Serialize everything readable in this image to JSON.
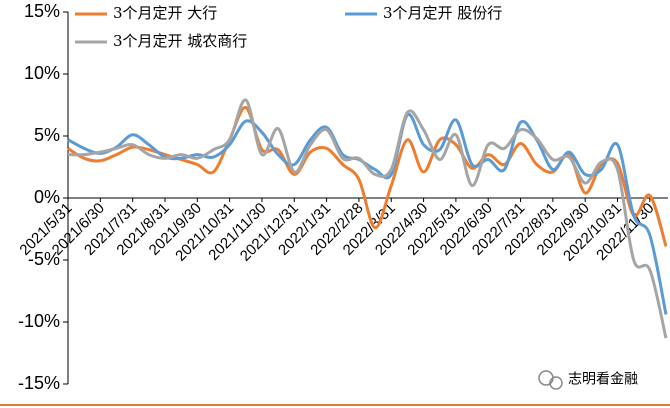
{
  "chart_data": {
    "type": "line",
    "categories": [
      "2021/5/31",
      null,
      "2021/6/30",
      null,
      "2021/7/31",
      null,
      "2021/8/31",
      null,
      "2021/9/30",
      null,
      "2021/10/31",
      null,
      "2021/11/30",
      null,
      "2021/12/31",
      null,
      "2022/1/31",
      null,
      "2022/2/28",
      null,
      "2022/3/31",
      null,
      "2022/4/30",
      null,
      "2022/5/31",
      null,
      "2022/6/30",
      null,
      "2022/7/31",
      null,
      "2022/8/31",
      null,
      "2022/9/30",
      null,
      "2022/10/31",
      null,
      "2022/11/30",
      null
    ],
    "series": [
      {
        "name": "3个月定开 大行",
        "color": "#ED7D31",
        "values": [
          4.0,
          3.2,
          3.0,
          3.5,
          4.1,
          3.9,
          3.5,
          3.1,
          2.7,
          2.1,
          4.7,
          7.3,
          3.9,
          3.9,
          1.9,
          3.7,
          4.0,
          2.7,
          1.5,
          -2.4,
          1.0,
          4.7,
          2.1,
          4.7,
          4.3,
          2.4,
          3.5,
          2.7,
          4.4,
          2.7,
          2.1,
          3.5,
          0.4,
          2.7,
          2.8,
          -1.4,
          0.2,
          -3.9
        ]
      },
      {
        "name": "3个月定开 股份行",
        "color": "#5B9BD5",
        "values": [
          4.7,
          4.0,
          3.6,
          4.1,
          5.1,
          4.3,
          3.3,
          3.2,
          3.5,
          3.3,
          4.3,
          6.2,
          5.3,
          3.5,
          2.7,
          4.7,
          5.7,
          3.5,
          3.1,
          2.3,
          1.9,
          6.7,
          4.3,
          3.9,
          6.3,
          2.7,
          3.1,
          2.3,
          6.1,
          4.7,
          2.3,
          3.7,
          1.9,
          2.3,
          4.3,
          -1.4,
          -3.0,
          -9.4
        ]
      },
      {
        "name": "3个月定开 城农商行",
        "color": "#A5A5A5",
        "values": [
          3.5,
          3.5,
          3.7,
          4.0,
          4.3,
          3.5,
          3.2,
          3.5,
          3.2,
          3.9,
          4.7,
          7.9,
          3.5,
          5.6,
          2.1,
          4.3,
          5.5,
          3.2,
          3.2,
          1.9,
          2.3,
          6.9,
          5.5,
          3.1,
          5.1,
          1.0,
          4.3,
          4.0,
          5.5,
          4.8,
          3.1,
          3.3,
          1.2,
          2.9,
          2.3,
          -5.0,
          -5.8,
          -11.3
        ]
      }
    ],
    "ylim": [
      -15,
      15
    ],
    "yticks": [
      {
        "value": -15,
        "label": "-15%"
      },
      {
        "value": -10,
        "label": "-10%"
      },
      {
        "value": -5,
        "label": "-5%"
      },
      {
        "value": 0,
        "label": "0%"
      },
      {
        "value": 5,
        "label": "5%"
      },
      {
        "value": 10,
        "label": "10%"
      },
      {
        "value": 15,
        "label": "15%"
      }
    ],
    "legend": "top-left",
    "watermark": "志明看金融"
  }
}
